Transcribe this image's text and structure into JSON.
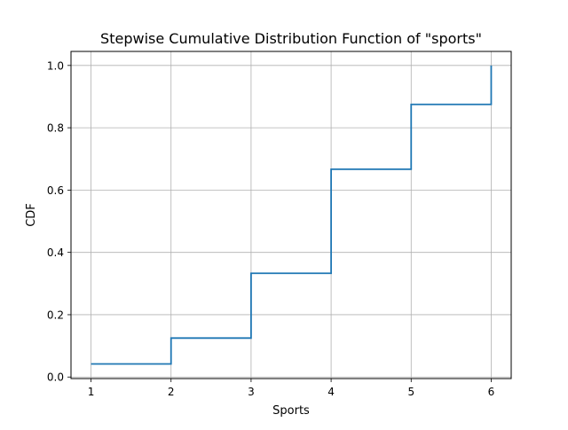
{
  "chart_data": {
    "type": "line",
    "step": "post",
    "title": "Stepwise Cumulative Distribution Function of \"sports\"",
    "xlabel": "Sports",
    "ylabel": "CDF",
    "xlim": [
      0.75,
      6.25
    ],
    "ylim": [
      -0.005,
      1.045
    ],
    "grid": true,
    "x_ticks": [
      1,
      2,
      3,
      4,
      5,
      6
    ],
    "y_ticks": [
      0.0,
      0.2,
      0.4,
      0.6,
      0.8,
      1.0
    ],
    "y_tick_labels": [
      "0.0",
      "0.2",
      "0.4",
      "0.6",
      "0.8",
      "1.0"
    ],
    "series": [
      {
        "color": "#1f77b4",
        "x": [
          1,
          2,
          3,
          4,
          5,
          6
        ],
        "y": [
          0.042,
          0.125,
          0.333,
          0.667,
          0.875,
          1.0
        ]
      }
    ]
  }
}
